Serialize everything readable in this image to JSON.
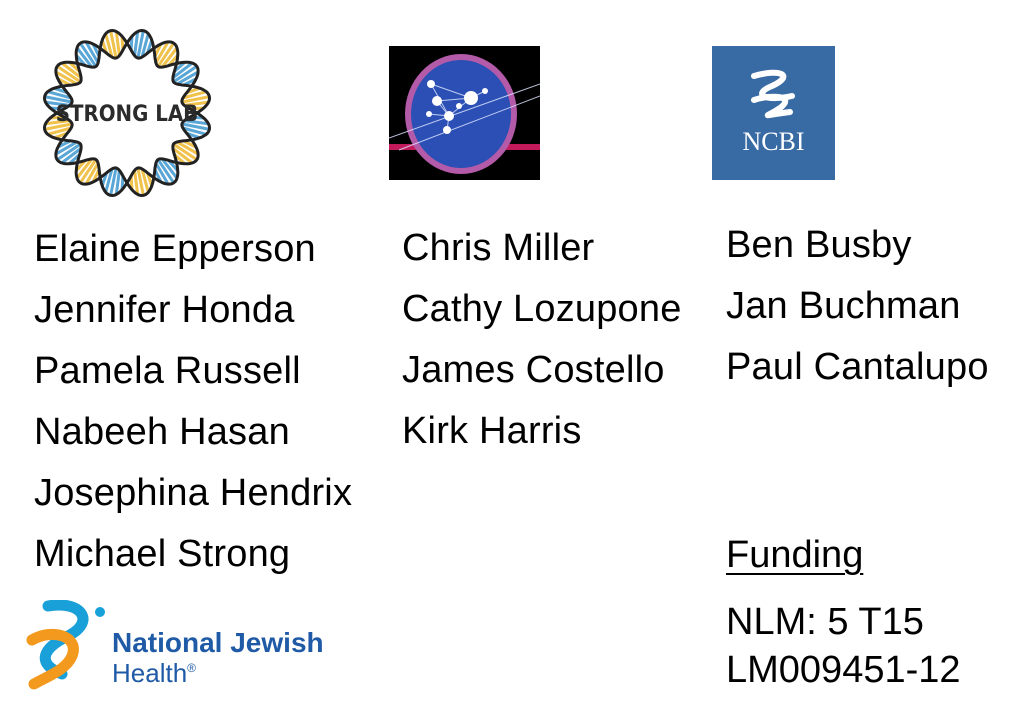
{
  "logos": {
    "strong_lab": {
      "line1": "STRONG",
      "line2": "LAB"
    },
    "ncbi": {
      "text": "NCBI"
    },
    "national_jewish_health": {
      "line1": "National Jewish",
      "line2": "Health",
      "registered": "®"
    }
  },
  "columns": {
    "strong_lab": [
      "Elaine Epperson",
      "Jennifer Honda",
      "Pamela Russell",
      "Nabeeh Hasan",
      "Josephina Hendrix",
      "Michael Strong"
    ],
    "middle": [
      "Chris Miller",
      "Cathy Lozupone",
      "James Costello",
      "Kirk Harris"
    ],
    "ncbi": [
      "Ben Busby",
      "Jan Buchman",
      "Paul Cantalupo"
    ]
  },
  "funding": {
    "heading": "Funding",
    "line1": "NLM: 5 T15",
    "line2": "LM009451-12"
  },
  "colors": {
    "ncbi_blue": "#386aa3",
    "njh_blue": "#1f5aa6",
    "njh_orange": "#f39a1e",
    "njh_cyan": "#1aa0d8",
    "helix_blue": "#5aa6d6",
    "helix_gold": "#f0c24b"
  }
}
